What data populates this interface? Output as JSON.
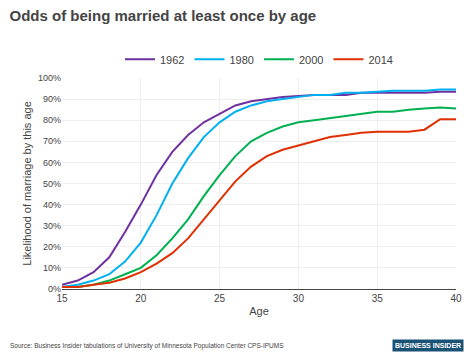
{
  "chart_data": {
    "type": "line",
    "title": "Odds of being married at least once by age",
    "x_label": "Age",
    "y_label": "Likelihood of marriage by this age",
    "annotations": [
      "Source: Business Insider tabulations of University of Minnesota Population Center CPS-IPUMS",
      "BUSINESS INSIDER"
    ],
    "x": [
      15,
      16,
      17,
      18,
      19,
      20,
      21,
      22,
      23,
      24,
      25,
      26,
      27,
      28,
      29,
      30,
      31,
      32,
      33,
      34,
      35,
      36,
      37,
      38,
      39,
      40
    ],
    "series": [
      {
        "name": "1962",
        "color": "#7030a0",
        "values": [
          0.02,
          0.04,
          0.08,
          0.15,
          0.27,
          0.4,
          0.54,
          0.65,
          0.73,
          0.79,
          0.83,
          0.87,
          0.89,
          0.9,
          0.91,
          0.915,
          0.92,
          0.92,
          0.92,
          0.93,
          0.93,
          0.93,
          0.93,
          0.93,
          0.935,
          0.935
        ]
      },
      {
        "name": "1980",
        "color": "#00b0f0",
        "values": [
          0.01,
          0.02,
          0.04,
          0.07,
          0.13,
          0.22,
          0.35,
          0.5,
          0.62,
          0.72,
          0.79,
          0.84,
          0.87,
          0.89,
          0.9,
          0.91,
          0.92,
          0.92,
          0.93,
          0.93,
          0.935,
          0.94,
          0.94,
          0.94,
          0.945,
          0.945
        ]
      },
      {
        "name": "2000",
        "color": "#00b050",
        "values": [
          0.01,
          0.01,
          0.02,
          0.04,
          0.07,
          0.1,
          0.16,
          0.24,
          0.33,
          0.44,
          0.54,
          0.63,
          0.7,
          0.74,
          0.77,
          0.79,
          0.8,
          0.81,
          0.82,
          0.83,
          0.84,
          0.84,
          0.85,
          0.855,
          0.86,
          0.855
        ]
      },
      {
        "name": "2014",
        "color": "#e03000",
        "values": [
          0.01,
          0.01,
          0.02,
          0.03,
          0.05,
          0.08,
          0.12,
          0.17,
          0.24,
          0.33,
          0.42,
          0.51,
          0.58,
          0.63,
          0.66,
          0.68,
          0.7,
          0.72,
          0.73,
          0.74,
          0.745,
          0.745,
          0.745,
          0.755,
          0.805,
          0.805
        ]
      }
    ],
    "xlim": [
      15,
      40
    ],
    "ylim": [
      0,
      1.0
    ],
    "xticks": [
      15,
      20,
      25,
      30,
      35,
      40
    ],
    "yticks": [
      {
        "value": 0,
        "label": "0%"
      },
      {
        "value": 0.1,
        "label": "10%"
      },
      {
        "value": 0.2,
        "label": "20%"
      },
      {
        "value": 0.3,
        "label": "30%"
      },
      {
        "value": 0.4,
        "label": "40%"
      },
      {
        "value": 0.5,
        "label": "50%"
      },
      {
        "value": 0.6,
        "label": "60%"
      },
      {
        "value": 0.7,
        "label": "70%"
      },
      {
        "value": 0.8,
        "label": "80%"
      },
      {
        "value": 0.9,
        "label": "90%"
      },
      {
        "value": 1.0,
        "label": "100%"
      }
    ],
    "grid": true,
    "legend": "top"
  }
}
